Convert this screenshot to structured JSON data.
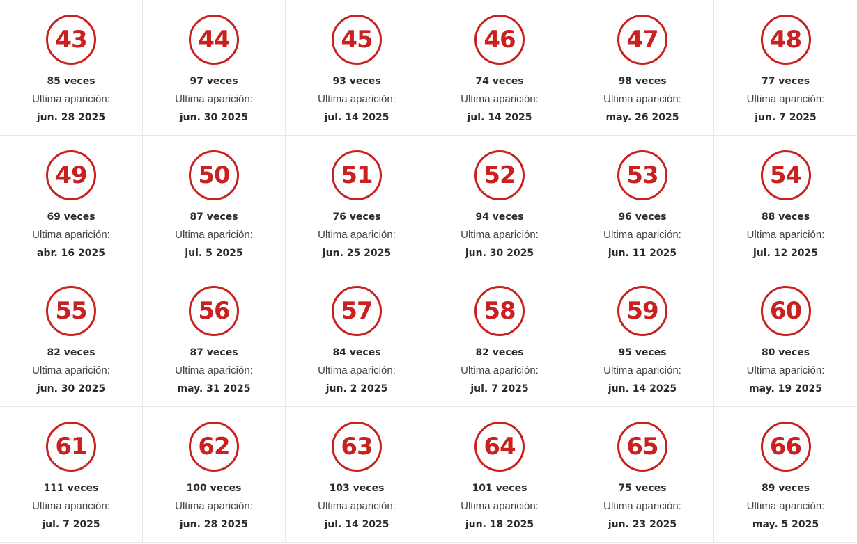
{
  "accent_color": "#c8211f",
  "last_label": "Ultima aparición:",
  "numbers": [
    {
      "number": "43",
      "count": "85 veces",
      "date": "jun. 28 2025"
    },
    {
      "number": "44",
      "count": "97 veces",
      "date": "jun. 30 2025"
    },
    {
      "number": "45",
      "count": "93 veces",
      "date": "jul. 14 2025"
    },
    {
      "number": "46",
      "count": "74 veces",
      "date": "jul. 14 2025"
    },
    {
      "number": "47",
      "count": "98 veces",
      "date": "may. 26 2025"
    },
    {
      "number": "48",
      "count": "77 veces",
      "date": "jun. 7 2025"
    },
    {
      "number": "49",
      "count": "69 veces",
      "date": "abr. 16 2025"
    },
    {
      "number": "50",
      "count": "87 veces",
      "date": "jul. 5 2025"
    },
    {
      "number": "51",
      "count": "76 veces",
      "date": "jun. 25 2025"
    },
    {
      "number": "52",
      "count": "94 veces",
      "date": "jun. 30 2025"
    },
    {
      "number": "53",
      "count": "96 veces",
      "date": "jun. 11 2025"
    },
    {
      "number": "54",
      "count": "88 veces",
      "date": "jul. 12 2025"
    },
    {
      "number": "55",
      "count": "82 veces",
      "date": "jun. 30 2025"
    },
    {
      "number": "56",
      "count": "87 veces",
      "date": "may. 31 2025"
    },
    {
      "number": "57",
      "count": "84 veces",
      "date": "jun. 2 2025"
    },
    {
      "number": "58",
      "count": "82 veces",
      "date": "jul. 7 2025"
    },
    {
      "number": "59",
      "count": "95 veces",
      "date": "jun. 14 2025"
    },
    {
      "number": "60",
      "count": "80 veces",
      "date": "may. 19 2025"
    },
    {
      "number": "61",
      "count": "111 veces",
      "date": "jul. 7 2025"
    },
    {
      "number": "62",
      "count": "100 veces",
      "date": "jun. 28 2025"
    },
    {
      "number": "63",
      "count": "103 veces",
      "date": "jul. 14 2025"
    },
    {
      "number": "64",
      "count": "101 veces",
      "date": "jun. 18 2025"
    },
    {
      "number": "65",
      "count": "75 veces",
      "date": "jun. 23 2025"
    },
    {
      "number": "66",
      "count": "89 veces",
      "date": "may. 5 2025"
    }
  ]
}
